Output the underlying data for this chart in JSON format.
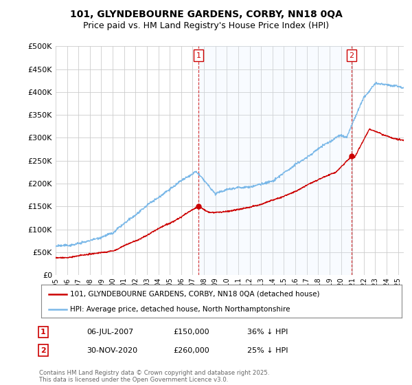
{
  "title": "101, GLYNDEBOURNE GARDENS, CORBY, NN18 0QA",
  "subtitle": "Price paid vs. HM Land Registry's House Price Index (HPI)",
  "ytick_values": [
    0,
    50000,
    100000,
    150000,
    200000,
    250000,
    300000,
    350000,
    400000,
    450000,
    500000
  ],
  "ylim": [
    0,
    500000
  ],
  "xlim_start": 1995.0,
  "xlim_end": 2025.5,
  "hpi_color": "#7ab8e8",
  "price_color": "#cc0000",
  "shade_color": "#ddeeff",
  "sale1_date": 2007.51,
  "sale1_price": 150000,
  "sale1_label": "1",
  "sale2_date": 2020.92,
  "sale2_price": 260000,
  "sale2_label": "2",
  "legend_house": "101, GLYNDEBOURNE GARDENS, CORBY, NN18 0QA (detached house)",
  "legend_hpi": "HPI: Average price, detached house, North Northamptonshire",
  "annotation1": "06-JUL-2007",
  "annotation1_price": "£150,000",
  "annotation1_hpi": "36% ↓ HPI",
  "annotation2": "30-NOV-2020",
  "annotation2_price": "£260,000",
  "annotation2_hpi": "25% ↓ HPI",
  "footer": "Contains HM Land Registry data © Crown copyright and database right 2025.\nThis data is licensed under the Open Government Licence v3.0.",
  "background_color": "#ffffff",
  "grid_color": "#cccccc",
  "title_fontsize": 10,
  "subtitle_fontsize": 9
}
